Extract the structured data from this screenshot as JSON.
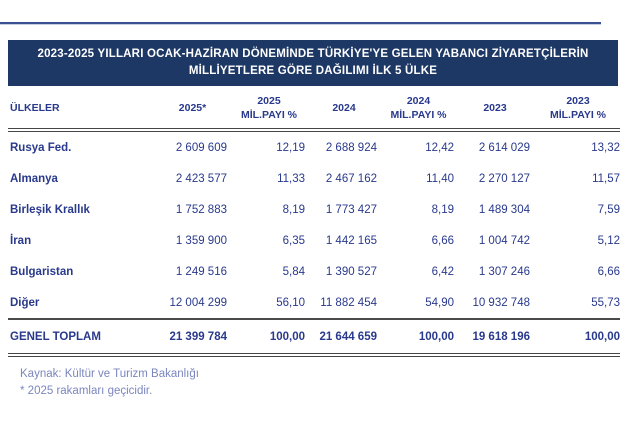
{
  "title": {
    "line1": "2023-2025 YILLARI OCAK-HAZİRAN DÖNEMİNDE TÜRKİYE'YE GELEN YABANCI ZİYARETÇİLERİN",
    "line2": "MİLLİYETLERE GÖRE DAĞILIMI İLK 5 ÜLKE"
  },
  "colors": {
    "banner_background": "#1e3866",
    "banner_text": "#ffffff",
    "table_text": "#29398c",
    "footer_text": "#7b86be",
    "top_rule": "#3b5292",
    "divider": "#454545"
  },
  "table": {
    "headers": {
      "country": "ÜLKELER",
      "y2025": "2025*",
      "s2025_line1": "2025",
      "s2025_line2": "MİL.PAYI %",
      "y2024": "2024",
      "s2024_line1": "2024",
      "s2024_line2": "MİL.PAYI %",
      "y2023": "2023",
      "s2023_line1": "2023",
      "s2023_line2": "MİL.PAYI %"
    },
    "rows": [
      {
        "country": "Rusya Fed.",
        "v2025": "2 609 609",
        "s2025": "12,19",
        "v2024": "2 688 924",
        "s2024": "12,42",
        "v2023": "2 614 029",
        "s2023": "13,32"
      },
      {
        "country": "Almanya",
        "v2025": "2 423 577",
        "s2025": "11,33",
        "v2024": "2 467 162",
        "s2024": "11,40",
        "v2023": "2 270 127",
        "s2023": "11,57"
      },
      {
        "country": "Birleşik Krallık",
        "v2025": "1 752 883",
        "s2025": "8,19",
        "v2024": "1 773 427",
        "s2024": "8,19",
        "v2023": "1 489 304",
        "s2023": "7,59"
      },
      {
        "country": "İran",
        "v2025": "1 359 900",
        "s2025": "6,35",
        "v2024": "1 442 165",
        "s2024": "6,66",
        "v2023": "1 004 742",
        "s2023": "5,12"
      },
      {
        "country": "Bulgaristan",
        "v2025": "1 249 516",
        "s2025": "5,84",
        "v2024": "1 390 527",
        "s2024": "6,42",
        "v2023": "1 307 246",
        "s2023": "6,66"
      },
      {
        "country": "Diğer",
        "v2025": "12 004 299",
        "s2025": "56,10",
        "v2024": "11 882 454",
        "s2024": "54,90",
        "v2023": "10 932 748",
        "s2023": "55,73"
      }
    ],
    "total": {
      "country": "GENEL TOPLAM",
      "v2025": "21 399 784",
      "s2025": "100,00",
      "v2024": "21 644 659",
      "s2024": "100,00",
      "v2023": "19 618 196",
      "s2023": "100,00"
    }
  },
  "footer": {
    "source": "Kaynak: Kültür ve Turizm Bakanlığı",
    "note": "* 2025 rakamları geçicidir."
  },
  "chart_data": {
    "type": "table",
    "title": "2023-2025 YILLARI OCAK-HAZİRAN DÖNEMİNDE TÜRKİYE'YE GELEN YABANCI ZİYARETÇİLERİN MİLLİYETLERE GÖRE DAĞILIMI İLK 5 ÜLKE",
    "columns": [
      "ÜLKELER",
      "2025*",
      "2025 MİL.PAYI %",
      "2024",
      "2024 MİL.PAYI %",
      "2023",
      "2023 MİL.PAYI %"
    ],
    "rows": [
      [
        "Rusya Fed.",
        2609609,
        12.19,
        2688924,
        12.42,
        2614029,
        13.32
      ],
      [
        "Almanya",
        2423577,
        11.33,
        2467162,
        11.4,
        2270127,
        11.57
      ],
      [
        "Birleşik Krallık",
        1752883,
        8.19,
        1773427,
        8.19,
        1489304,
        7.59
      ],
      [
        "İran",
        1359900,
        6.35,
        1442165,
        6.66,
        1004742,
        5.12
      ],
      [
        "Bulgaristan",
        1249516,
        5.84,
        1390527,
        6.42,
        1307246,
        6.66
      ],
      [
        "Diğer",
        12004299,
        56.1,
        11882454,
        54.9,
        10932748,
        55.73
      ]
    ],
    "total_row": [
      "GENEL TOPLAM",
      21399784,
      100.0,
      21644659,
      100.0,
      19618196,
      100.0
    ],
    "notes": [
      "Kaynak: Kültür ve Turizm Bakanlığı",
      "* 2025 rakamları geçicidir."
    ]
  }
}
